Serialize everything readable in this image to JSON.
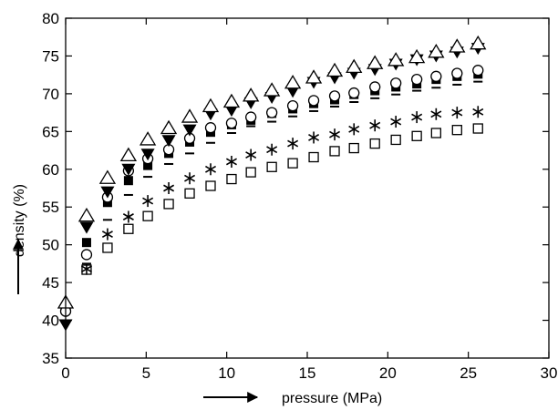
{
  "chart_data": {
    "type": "scatter",
    "xlabel": "pressure (MPa)",
    "ylabel": "density (%)",
    "xlim": [
      0,
      30
    ],
    "ylim": [
      35,
      80
    ],
    "xticks": [
      0,
      5,
      10,
      15,
      20,
      25,
      30
    ],
    "yticks": [
      35,
      40,
      45,
      50,
      55,
      60,
      65,
      70,
      75,
      80
    ],
    "grid": false,
    "legend": "none",
    "x": [
      0,
      1.3,
      2.6,
      3.9,
      5.1,
      6.4,
      7.7,
      9.0,
      10.3,
      11.5,
      12.8,
      14.1,
      15.4,
      16.7,
      17.9,
      19.2,
      20.5,
      21.8,
      23.0,
      24.3,
      25.6
    ],
    "series": [
      {
        "marker": "open-triangle-up",
        "values": [
          42.3,
          53.8,
          58.8,
          61.8,
          63.9,
          65.4,
          66.9,
          68.3,
          68.9,
          69.7,
          70.4,
          71.4,
          72.1,
          73.0,
          73.5,
          74.0,
          74.4,
          74.8,
          75.5,
          76.2,
          76.6
        ]
      },
      {
        "marker": "filled-triangle-down",
        "values": [
          39.4,
          52.3,
          57.0,
          60.0,
          62.0,
          63.8,
          65.2,
          67.3,
          67.8,
          68.8,
          69.5,
          70.3,
          71.5,
          72.1,
          72.7,
          73.2,
          73.9,
          74.5,
          75.0,
          75.5,
          76.0
        ]
      },
      {
        "marker": "open-circle",
        "values": [
          41.2,
          48.7,
          56.3,
          59.8,
          61.4,
          62.6,
          64.1,
          65.5,
          66.1,
          66.9,
          67.5,
          68.4,
          69.1,
          69.7,
          70.1,
          70.9,
          71.4,
          71.9,
          72.3,
          72.7,
          73.1
        ]
      },
      {
        "marker": "filled-square",
        "values": [
          41.8,
          50.3,
          55.6,
          58.5,
          60.5,
          62.1,
          63.6,
          64.9,
          65.9,
          66.5,
          67.4,
          68.0,
          68.7,
          69.2,
          69.9,
          70.4,
          70.9,
          71.3,
          71.9,
          72.3,
          72.6
        ]
      },
      {
        "marker": "dash",
        "values": [
          40.9,
          47.5,
          53.3,
          56.6,
          59.0,
          60.7,
          62.1,
          63.5,
          64.8,
          65.7,
          66.3,
          67.0,
          67.7,
          68.3,
          68.9,
          69.4,
          69.9,
          70.4,
          70.8,
          71.2,
          71.6
        ]
      },
      {
        "marker": "asterisk",
        "values": [
          41.5,
          46.8,
          51.4,
          53.7,
          55.8,
          57.5,
          58.8,
          60.0,
          61.0,
          61.9,
          62.6,
          63.4,
          64.2,
          64.6,
          65.3,
          65.8,
          66.3,
          66.9,
          67.3,
          67.5,
          67.6
        ]
      },
      {
        "marker": "open-square",
        "values": [
          41.6,
          46.7,
          49.6,
          52.1,
          53.8,
          55.4,
          56.8,
          57.8,
          58.7,
          59.6,
          60.3,
          60.8,
          61.6,
          62.4,
          62.8,
          63.4,
          63.9,
          64.4,
          64.8,
          65.2,
          65.4
        ]
      }
    ]
  }
}
